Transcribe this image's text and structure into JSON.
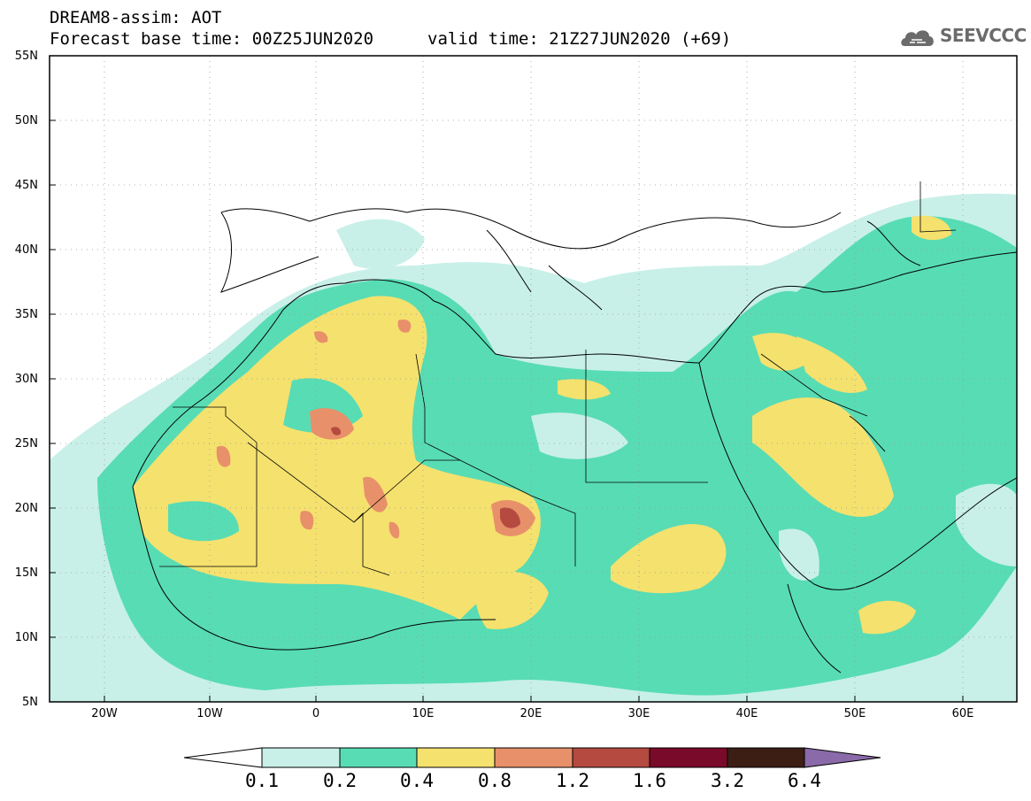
{
  "header": {
    "title": "DREAM8-assim: AOT",
    "base_time": "Forecast base time: 00Z25JUN2020",
    "valid_time": "valid time: 21Z27JUN2020 (+69)",
    "logo_text": "SEEVCCC",
    "logo_icon": "cloud-icon"
  },
  "axes": {
    "lat_labels": [
      "55N",
      "50N",
      "45N",
      "40N",
      "35N",
      "30N",
      "25N",
      "20N",
      "15N",
      "10N",
      "5N"
    ],
    "lon_labels": [
      "20W",
      "10W",
      "0",
      "10E",
      "20E",
      "30E",
      "40E",
      "50E",
      "60E"
    ]
  },
  "colorbar": {
    "labels": [
      "0.1",
      "0.2",
      "0.4",
      "0.8",
      "1.2",
      "1.6",
      "3.2",
      "6.4"
    ],
    "colors": [
      "#c8f0e8",
      "#58dcb4",
      "#f5e16e",
      "#e8906a",
      "#b44a40",
      "#7a0a2a",
      "#3c1e14",
      "#8a6aa8"
    ],
    "under_color": "#ffffff"
  },
  "map_colors": {
    "light": "#c8f0e8",
    "green": "#58dcb4",
    "yellow": "#f5e16e",
    "orange": "#e8906a",
    "red": "#b44a40"
  }
}
